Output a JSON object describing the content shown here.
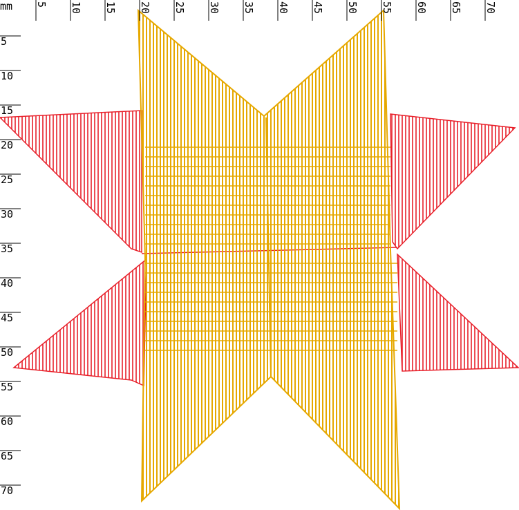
{
  "ruler": {
    "unit": "mm",
    "x_ticks": [
      5,
      10,
      15,
      20,
      25,
      30,
      35,
      40,
      45,
      50,
      55,
      60,
      65,
      70
    ],
    "y_ticks": [
      5,
      10,
      15,
      20,
      25,
      30,
      35,
      40,
      45,
      50,
      55,
      60,
      65,
      70
    ]
  }
}
